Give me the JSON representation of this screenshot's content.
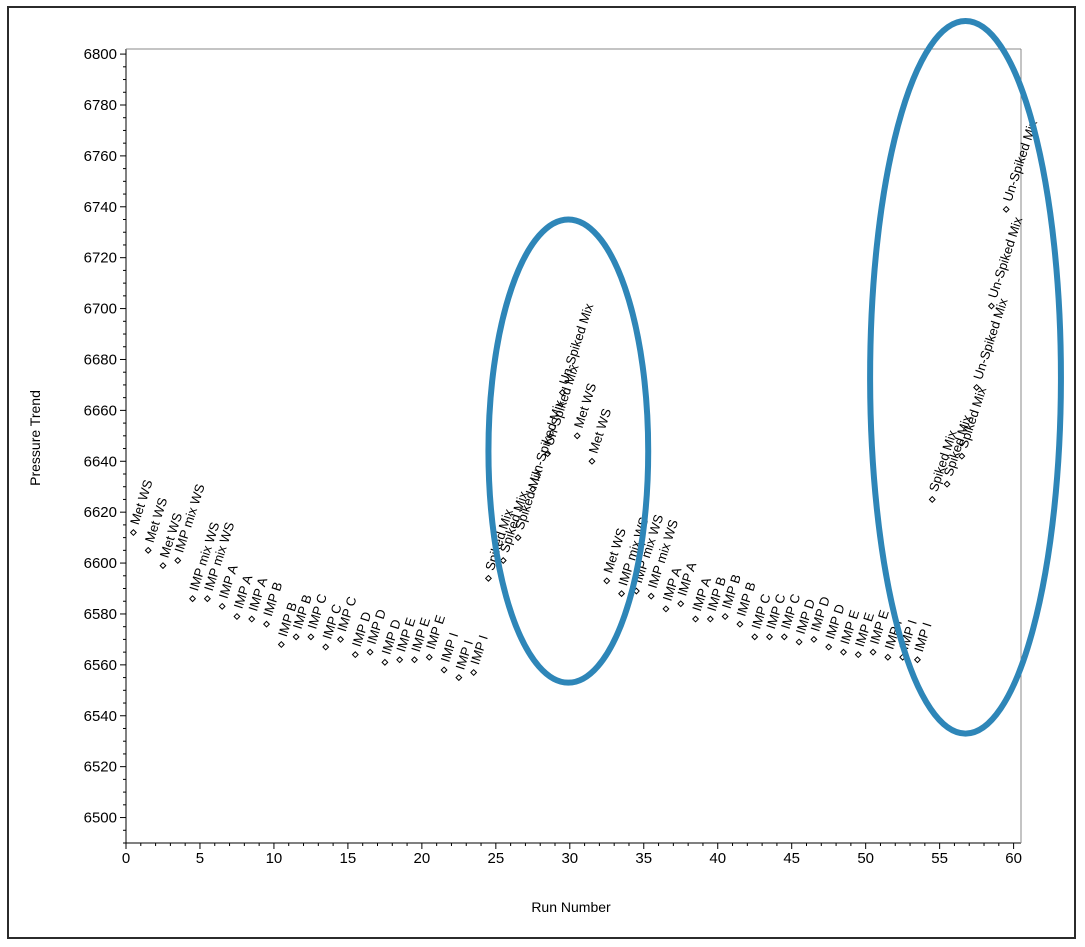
{
  "chart_data": {
    "type": "scatter",
    "title": "",
    "xlabel": "Run Number",
    "ylabel": "Pressure Trend",
    "xlim": [
      0,
      60.5
    ],
    "ylim": [
      6490,
      6802
    ],
    "x_ticks": [
      0,
      5,
      10,
      15,
      20,
      25,
      30,
      35,
      40,
      45,
      50,
      55,
      60
    ],
    "y_ticks": [
      6500,
      6520,
      6540,
      6560,
      6580,
      6600,
      6620,
      6640,
      6660,
      6680,
      6700,
      6720,
      6740,
      6760,
      6780,
      6800
    ],
    "grid": false,
    "marker": "diamond-open",
    "series": [
      {
        "points": [
          {
            "x": 0.5,
            "y": 6612,
            "label": "Met WS"
          },
          {
            "x": 1.5,
            "y": 6605,
            "label": "Met WS"
          },
          {
            "x": 2.5,
            "y": 6599,
            "label": "Met WS"
          },
          {
            "x": 3.5,
            "y": 6601,
            "label": "IMP mix WS"
          },
          {
            "x": 4.5,
            "y": 6586,
            "label": "IMP mix WS"
          },
          {
            "x": 5.5,
            "y": 6586,
            "label": "IMP mix WS"
          },
          {
            "x": 6.5,
            "y": 6583,
            "label": "IMP A"
          },
          {
            "x": 7.5,
            "y": 6579,
            "label": "IMP A"
          },
          {
            "x": 8.5,
            "y": 6578,
            "label": "IMP A"
          },
          {
            "x": 9.5,
            "y": 6576,
            "label": "IMP B"
          },
          {
            "x": 10.5,
            "y": 6568,
            "label": "IMP B"
          },
          {
            "x": 11.5,
            "y": 6571,
            "label": "IMP B"
          },
          {
            "x": 12.5,
            "y": 6571,
            "label": "IMP C"
          },
          {
            "x": 13.5,
            "y": 6567,
            "label": "IMP C"
          },
          {
            "x": 14.5,
            "y": 6570,
            "label": "IMP C"
          },
          {
            "x": 15.5,
            "y": 6564,
            "label": "IMP D"
          },
          {
            "x": 16.5,
            "y": 6565,
            "label": "IMP D"
          },
          {
            "x": 17.5,
            "y": 6561,
            "label": "IMP D"
          },
          {
            "x": 18.5,
            "y": 6562,
            "label": "IMP E"
          },
          {
            "x": 19.5,
            "y": 6562,
            "label": "IMP E"
          },
          {
            "x": 20.5,
            "y": 6563,
            "label": "IMP E"
          },
          {
            "x": 21.5,
            "y": 6558,
            "label": "IMP I"
          },
          {
            "x": 22.5,
            "y": 6555,
            "label": "IMP I"
          },
          {
            "x": 23.5,
            "y": 6557,
            "label": "IMP I"
          },
          {
            "x": 24.5,
            "y": 6594,
            "label": "Spiked Mix"
          },
          {
            "x": 25.5,
            "y": 6601,
            "label": "Spiked Mix"
          },
          {
            "x": 26.5,
            "y": 6610,
            "label": "Spiked Mix"
          },
          {
            "x": 27.5,
            "y": 6629,
            "label": "Un-Spiked Mix"
          },
          {
            "x": 28.5,
            "y": 6643,
            "label": "Un-Spiked Mix"
          },
          {
            "x": 29.5,
            "y": 6667,
            "label": "Un-Spiked Mix"
          },
          {
            "x": 30.5,
            "y": 6650,
            "label": "Met WS"
          },
          {
            "x": 31.5,
            "y": 6640,
            "label": "Met WS"
          },
          {
            "x": 32.5,
            "y": 6593,
            "label": "Met WS"
          },
          {
            "x": 33.5,
            "y": 6588,
            "label": "IMP mix WS"
          },
          {
            "x": 34.5,
            "y": 6589,
            "label": "IMP mix WS"
          },
          {
            "x": 35.5,
            "y": 6587,
            "label": "IMP mix WS"
          },
          {
            "x": 36.5,
            "y": 6582,
            "label": "IMP A"
          },
          {
            "x": 37.5,
            "y": 6584,
            "label": "IMP A"
          },
          {
            "x": 38.5,
            "y": 6578,
            "label": "IMP A"
          },
          {
            "x": 39.5,
            "y": 6578,
            "label": "IMP B"
          },
          {
            "x": 40.5,
            "y": 6579,
            "label": "IMP B"
          },
          {
            "x": 41.5,
            "y": 6576,
            "label": "IMP B"
          },
          {
            "x": 42.5,
            "y": 6571,
            "label": "IMP C"
          },
          {
            "x": 43.5,
            "y": 6571,
            "label": "IMP C"
          },
          {
            "x": 44.5,
            "y": 6571,
            "label": "IMP C"
          },
          {
            "x": 45.5,
            "y": 6569,
            "label": "IMP D"
          },
          {
            "x": 46.5,
            "y": 6570,
            "label": "IMP D"
          },
          {
            "x": 47.5,
            "y": 6567,
            "label": "IMP D"
          },
          {
            "x": 48.5,
            "y": 6565,
            "label": "IMP E"
          },
          {
            "x": 49.5,
            "y": 6564,
            "label": "IMP E"
          },
          {
            "x": 50.5,
            "y": 6565,
            "label": "IMP E"
          },
          {
            "x": 51.5,
            "y": 6563,
            "label": "IMP I"
          },
          {
            "x": 52.5,
            "y": 6563,
            "label": "IMP I"
          },
          {
            "x": 53.5,
            "y": 6562,
            "label": "IMP I"
          },
          {
            "x": 54.5,
            "y": 6625,
            "label": "Spiked Mix"
          },
          {
            "x": 55.5,
            "y": 6631,
            "label": "Spiked Mix"
          },
          {
            "x": 56.5,
            "y": 6642,
            "label": "Spiked Mix"
          },
          {
            "x": 57.5,
            "y": 6669,
            "label": "Un-Spiked Mix"
          },
          {
            "x": 58.5,
            "y": 6701,
            "label": "Un-Spiked Mix"
          },
          {
            "x": 59.5,
            "y": 6739,
            "label": "Un-Spiked Mix"
          }
        ]
      }
    ],
    "annotations": [
      {
        "shape": "ellipse",
        "x_range": [
          24.5,
          35.3
        ],
        "y_range": [
          6553,
          6735
        ],
        "color": "#2e86b8"
      },
      {
        "shape": "ellipse",
        "x_range": [
          50.3,
          63.2
        ],
        "y_range": [
          6533,
          6813
        ],
        "color": "#2e86b8"
      }
    ],
    "colors": {
      "marker": "#000000",
      "axis": "#000000",
      "highlight": "#2e86b8"
    }
  }
}
